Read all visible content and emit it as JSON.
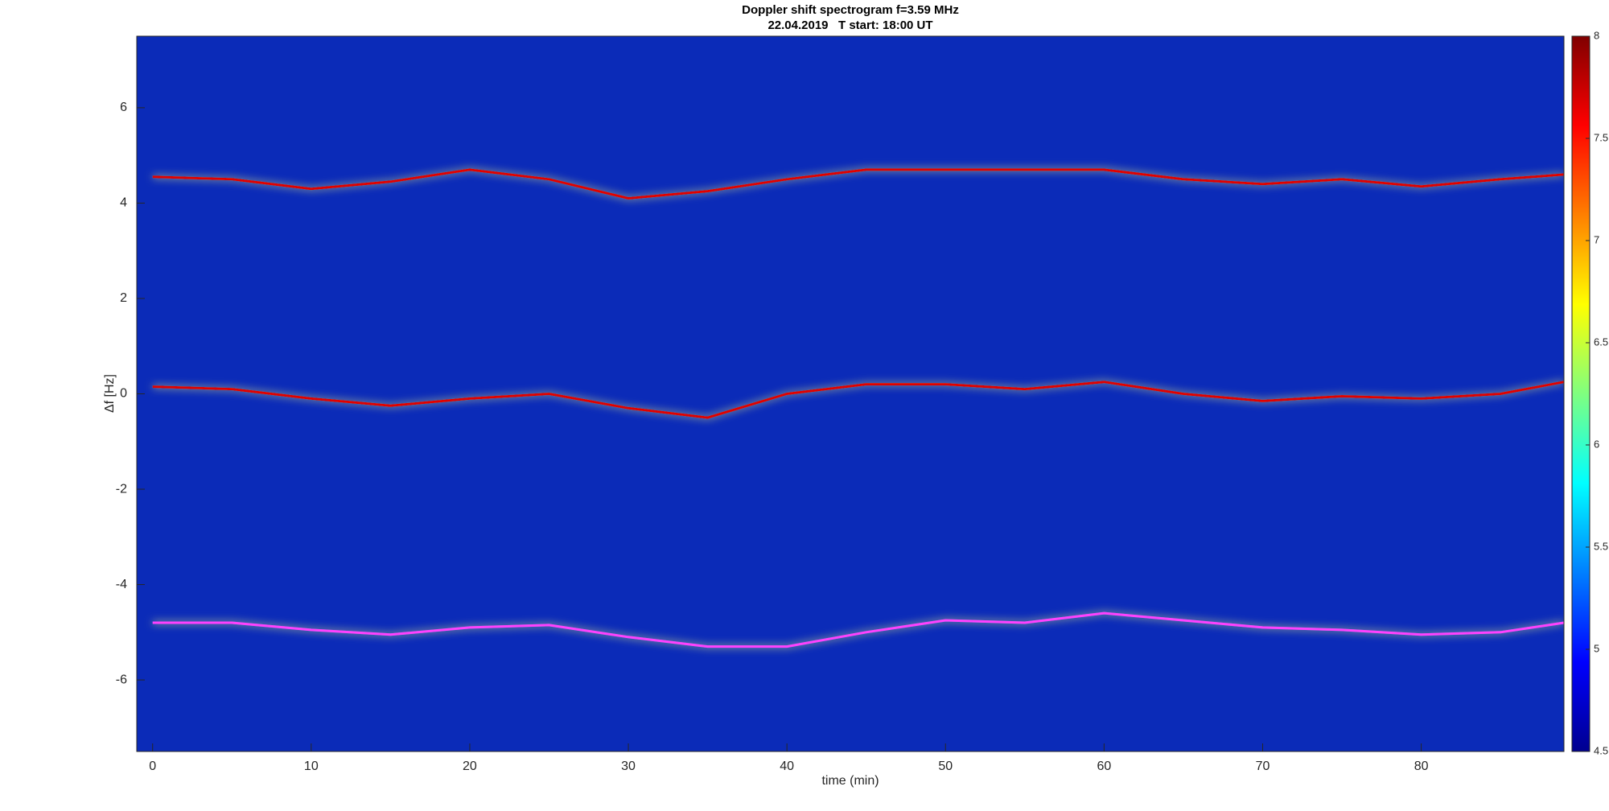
{
  "chart_data": {
    "type": "spectrogram",
    "title": "Doppler shift spectrogram f=3.59 MHz",
    "subtitle": "22.04.2019   T start: 18:00 UT",
    "x_label": "time (min)",
    "y_label": "Δf [Hz]",
    "x": [
      0,
      5,
      10,
      15,
      20,
      25,
      30,
      35,
      40,
      45,
      50,
      55,
      60,
      65,
      70,
      75,
      80,
      85,
      89
    ],
    "series": [
      {
        "color": "#e00000",
        "values": [
          4.55,
          4.5,
          4.3,
          4.45,
          4.7,
          4.5,
          4.1,
          4.25,
          4.5,
          4.7,
          4.7,
          4.7,
          4.7,
          4.5,
          4.4,
          4.5,
          4.35,
          4.5,
          4.6
        ]
      },
      {
        "color": "#e00000",
        "values": [
          0.15,
          0.1,
          -0.1,
          -0.25,
          -0.1,
          0,
          -0.3,
          -0.5,
          0,
          0.2,
          0.2,
          0.1,
          0.25,
          0,
          -0.15,
          -0.05,
          -0.1,
          0,
          0.25
        ]
      },
      {
        "color": "#ff40ff",
        "values": [
          -4.8,
          -4.8,
          -4.95,
          -5.05,
          -4.9,
          -4.85,
          -5.1,
          -5.3,
          -5.3,
          -5.0,
          -4.75,
          -4.8,
          -4.6,
          -4.75,
          -4.9,
          -4.95,
          -5.05,
          -5.0,
          -4.8
        ]
      }
    ],
    "xlim": [
      -1,
      89
    ],
    "xticks": [
      0,
      10,
      20,
      30,
      40,
      50,
      60,
      70,
      80
    ],
    "ylim": [
      -7.5,
      7.5
    ],
    "yticks": [
      -6,
      -4,
      -2,
      0,
      2,
      4,
      6
    ],
    "background_color": "#0b2bb8",
    "colorbar": {
      "colormap": "jet",
      "lim": [
        4.5,
        8
      ],
      "ticks": [
        4.5,
        5,
        5.5,
        6,
        6.5,
        7,
        7.5,
        8
      ]
    }
  }
}
